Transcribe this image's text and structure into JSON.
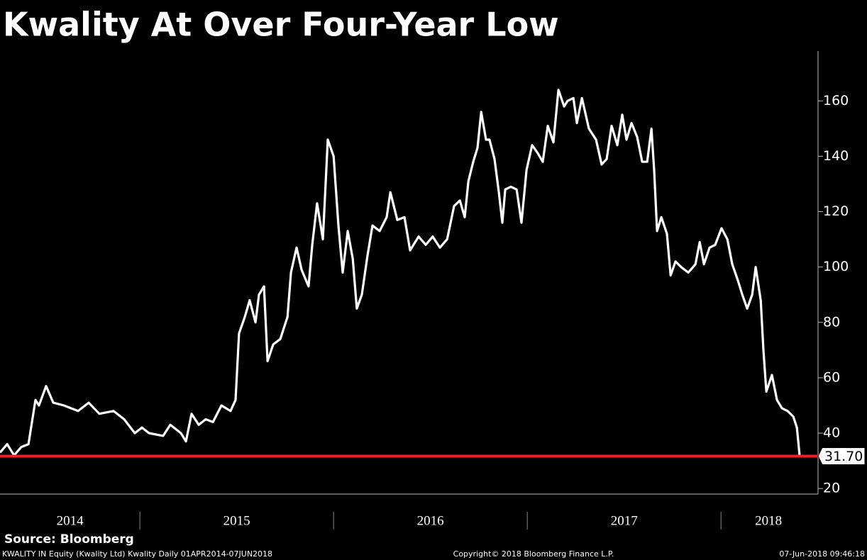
{
  "chart_data": {
    "type": "line",
    "title": "Kwality At Over Four-Year Low",
    "source": "Source: Bloomberg",
    "footer_left": "KWALITY IN Equity (Kwality Ltd) Kwality  Daily 01APR2014-07JUN2018",
    "footer_center": "Copyright© 2018 Bloomberg Finance L.P.",
    "footer_right": "07-Jun-2018 09:46:18",
    "color": "#ffffff",
    "x": [
      2014.278,
      2014.315,
      2014.351,
      2014.388,
      2014.425,
      2014.461,
      2014.479,
      2014.516,
      2014.553,
      2014.608,
      2014.681,
      2014.736,
      2014.791,
      2014.864,
      2014.919,
      2014.974,
      2015.011,
      2015.047,
      2015.12,
      2015.157,
      2015.212,
      2015.238,
      2015.267,
      2015.304,
      2015.34,
      2015.377,
      2015.421,
      2015.468,
      2015.494,
      2015.512,
      2015.542,
      2015.567,
      2015.597,
      2015.615,
      2015.641,
      2015.659,
      2015.688,
      2015.725,
      2015.762,
      2015.78,
      2015.809,
      2015.835,
      2015.871,
      2015.89,
      2015.915,
      2015.945,
      2015.97,
      2016.0,
      2016.025,
      2016.047,
      2016.073,
      2016.099,
      2016.12,
      2016.146,
      2016.175,
      2016.201,
      2016.238,
      2016.274,
      2016.293,
      2016.329,
      2016.366,
      2016.395,
      2016.439,
      2016.476,
      2016.512,
      2016.549,
      2016.586,
      2016.622,
      2016.652,
      2016.677,
      2016.696,
      2016.721,
      2016.743,
      2016.762,
      2016.787,
      2016.805,
      2016.831,
      2016.853,
      2016.871,
      2016.886,
      2016.915,
      2016.945,
      2016.97,
      2016.996,
      2017.025,
      2017.055,
      2017.08,
      2017.106,
      2017.135,
      2017.161,
      2017.19,
      2017.208,
      2017.238,
      2017.256,
      2017.282,
      2017.318,
      2017.355,
      2017.384,
      2017.41,
      2017.435,
      2017.465,
      2017.49,
      2017.512,
      2017.538,
      2017.567,
      2017.593,
      2017.619,
      2017.641,
      2017.655,
      2017.67,
      2017.692,
      2017.721,
      2017.74,
      2017.765,
      2017.794,
      2017.831,
      2017.868,
      2017.89,
      2017.912,
      2017.941,
      2017.97,
      2018.003,
      2018.033,
      2018.058,
      2018.088,
      2018.11,
      2018.135,
      2018.161,
      2018.179,
      2018.205,
      2018.219,
      2018.234,
      2018.263,
      2018.289,
      2018.315,
      2018.344,
      2018.373,
      2018.392,
      2018.406
    ],
    "values": [
      33,
      36,
      32,
      35,
      36,
      52,
      50,
      57,
      51,
      50,
      48,
      51,
      47,
      48,
      45,
      40,
      42,
      40,
      39,
      43,
      40,
      37,
      47,
      43,
      45,
      44,
      50,
      48,
      52,
      76,
      82,
      88,
      80,
      90,
      93,
      66,
      72,
      74,
      82,
      98,
      107,
      99,
      93,
      108,
      123,
      110,
      146,
      140,
      115,
      98,
      113,
      103,
      85,
      90,
      104,
      115,
      113,
      118,
      127,
      117,
      118,
      106,
      111,
      108,
      111,
      107,
      110,
      122,
      124,
      118,
      131,
      138,
      143,
      156,
      146,
      146,
      139,
      127,
      116,
      128,
      129,
      128,
      116,
      135,
      144,
      141,
      138,
      151,
      145,
      164,
      158,
      160,
      161,
      152,
      161,
      150,
      146,
      137,
      139,
      151,
      144,
      155,
      146,
      152,
      147,
      138,
      138,
      150,
      135,
      113,
      118,
      112,
      97,
      102,
      100,
      98,
      101,
      109,
      101,
      107,
      108,
      114,
      110,
      101,
      95,
      90,
      85,
      90,
      100,
      88,
      70,
      55,
      61,
      52,
      49,
      48,
      46,
      42,
      31.7
    ],
    "last_value": 31.7,
    "last_value_label": "31.70",
    "last_value_color": "#e8212b",
    "xlim": [
      2014.278,
      2018.49
    ],
    "xticks": [
      2015,
      2016,
      2017,
      2018
    ],
    "period_labels": [
      "2014",
      "2015",
      "2016",
      "2017",
      "2018"
    ],
    "ylim": [
      18.5,
      178
    ],
    "yticks": [
      20,
      40,
      60,
      80,
      100,
      120,
      140,
      160
    ]
  }
}
